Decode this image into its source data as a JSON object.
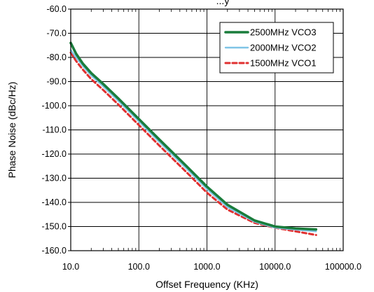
{
  "chart_data": {
    "type": "line",
    "title": "...y",
    "xlabel": "Offset Frequency (KHz)",
    "ylabel": "Phase Noise (dBc/Hz)",
    "xscale": "log",
    "xlim": [
      10,
      100000
    ],
    "ylim": [
      -160,
      -60
    ],
    "x_ticks": [
      "10.0",
      "100.0",
      "1000.0",
      "10000.0",
      "100000.0"
    ],
    "y_ticks": [
      "-60.0",
      "-70.0",
      "-80.0",
      "-90.0",
      "-100.0",
      "-110.0",
      "-120.0",
      "-130.0",
      "-140.0",
      "-150.0",
      "-160.0"
    ],
    "grid": true,
    "legend_position": "top-right",
    "series": [
      {
        "name": "2500MHz VCO3",
        "color": "#1a7d3c",
        "style": "solid",
        "x": [
          10,
          12,
          15,
          20,
          30,
          50,
          100,
          200,
          500,
          1000,
          2000,
          5000,
          10000,
          20000,
          40000
        ],
        "y": [
          -74,
          -78.5,
          -82.5,
          -86.5,
          -91,
          -97,
          -105.5,
          -114,
          -125,
          -133.5,
          -141,
          -147.5,
          -150,
          -150.8,
          -151.2
        ]
      },
      {
        "name": "2000MHz VCO2",
        "color": "#7fc4e6",
        "style": "solid",
        "x": [
          10,
          12,
          15,
          20,
          30,
          50,
          100,
          200,
          500,
          1000,
          2000,
          5000,
          10000,
          20000,
          40000
        ],
        "y": [
          -77,
          -80,
          -83.5,
          -87.5,
          -92,
          -98,
          -106.5,
          -115,
          -126,
          -134.5,
          -142,
          -148,
          -150.5,
          -151.3,
          -152
        ]
      },
      {
        "name": "1500MHz VCO1",
        "color": "#e03030",
        "style": "dashed",
        "x": [
          10,
          12,
          15,
          20,
          30,
          50,
          100,
          200,
          500,
          1000,
          2000,
          5000,
          10000,
          20000,
          40000
        ],
        "y": [
          -78,
          -81.5,
          -85,
          -89,
          -93.5,
          -99.5,
          -108,
          -116.5,
          -127.5,
          -136,
          -143,
          -148.5,
          -150.5,
          -152,
          -153.5
        ]
      }
    ]
  }
}
